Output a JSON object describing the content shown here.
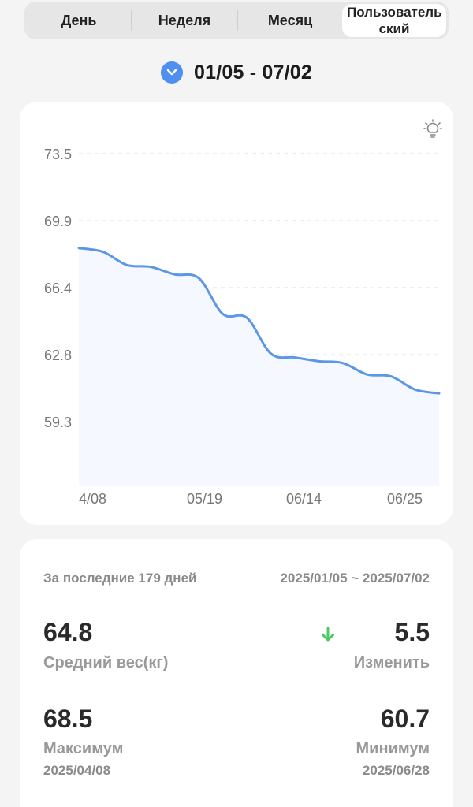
{
  "tabs": [
    {
      "label": "День",
      "active": false
    },
    {
      "label": "Неделя",
      "active": false
    },
    {
      "label": "Месяц",
      "active": false
    },
    {
      "label": "Пользовательский",
      "active": true
    }
  ],
  "range": {
    "label": "01/05 - 07/02",
    "icon": "chevron-down-icon"
  },
  "chart_data": {
    "type": "area",
    "yticks": [
      "73.5",
      "69.9",
      "66.4",
      "62.8",
      "59.3"
    ],
    "ylim": [
      55.7,
      73.5
    ],
    "xtick_labels": [
      "4/08",
      "05/19",
      "06/14",
      "06/25"
    ],
    "series": [
      {
        "points": [
          [
            "04/08",
            68.5
          ],
          [
            "04/14",
            68.3
          ],
          [
            "04/22",
            67.6
          ],
          [
            "04/30",
            67.5
          ],
          [
            "05/08",
            67.1
          ],
          [
            "05/16",
            66.9
          ],
          [
            "05/24",
            65.0
          ],
          [
            "05/31",
            64.8
          ],
          [
            "06/08",
            62.9
          ],
          [
            "06/14",
            62.7
          ],
          [
            "06/20",
            62.5
          ],
          [
            "06/25",
            62.4
          ],
          [
            "07/02",
            61.8
          ],
          [
            "07/08",
            61.7
          ],
          [
            "07/14",
            61.0
          ],
          [
            "07/20",
            60.8
          ]
        ]
      }
    ],
    "grid": true,
    "line_color": "#5b97e6",
    "fill_color": "#f5f8fe"
  },
  "stats": {
    "period_label": "За последние 179 дней",
    "period_range": "2025/01/05 ~ 2025/07/02",
    "avg_value": "64.8",
    "avg_label": "Средний вес(кг)",
    "change_value": "5.5",
    "change_label": "Изменить",
    "max_value": "68.5",
    "max_label": "Максимум",
    "max_date": "2025/04/08",
    "min_value": "60.7",
    "min_label": "Минимум",
    "min_date": "2025/06/28",
    "accent_down": "#4cc964"
  }
}
